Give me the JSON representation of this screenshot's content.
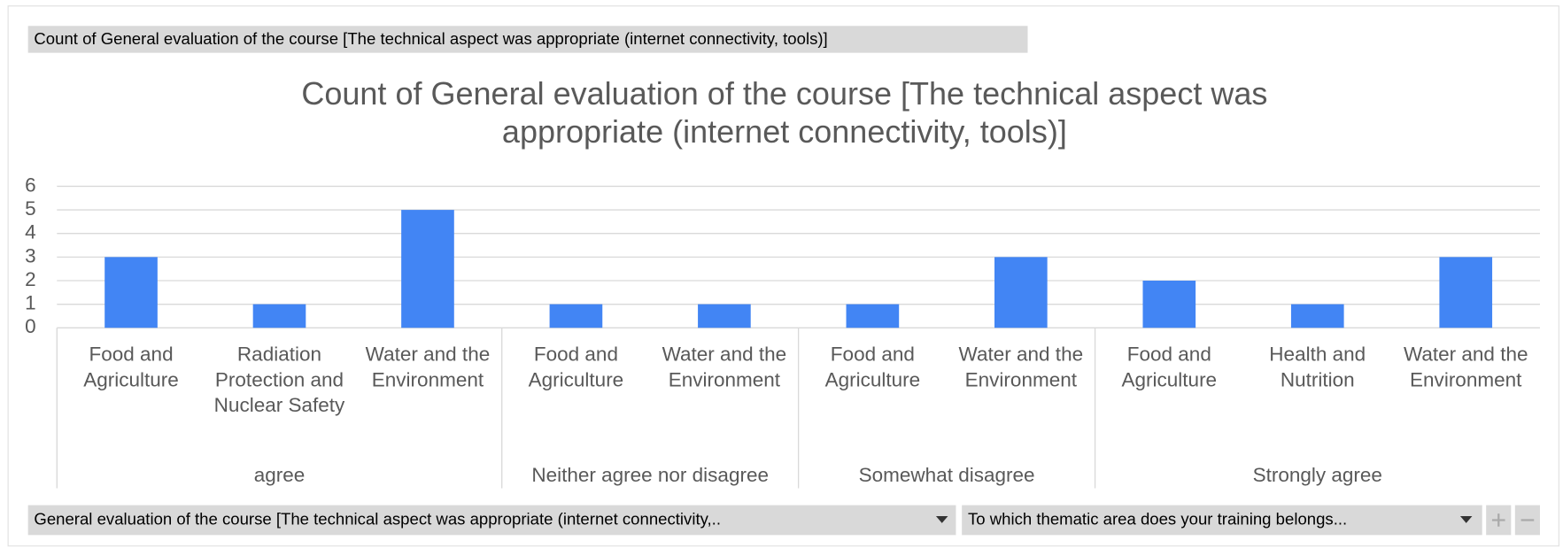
{
  "field_button": "Count of General evaluation of the course [The technical aspect was appropriate (internet connectivity, tools)]",
  "chart_data": {
    "type": "bar",
    "title": "Count of General evaluation of the course [The technical aspect was appropriate (internet connectivity, tools)]",
    "color": "#4285f4",
    "ylim": [
      0,
      6
    ],
    "yticks": [
      0,
      1,
      2,
      3,
      4,
      5,
      6
    ],
    "grid": true,
    "groups": [
      {
        "label": "agree",
        "categories": [
          "Food and Agriculture",
          "Radiation Protection and Nuclear Safety",
          "Water and the Environment"
        ],
        "values": [
          3,
          1,
          5
        ]
      },
      {
        "label": "Neither agree nor disagree",
        "categories": [
          "Food and Agriculture",
          "Water and the Environment"
        ],
        "values": [
          1,
          1
        ]
      },
      {
        "label": "Somewhat disagree",
        "categories": [
          "Food and Agriculture",
          "Water and the Environment"
        ],
        "values": [
          1,
          3
        ]
      },
      {
        "label": "Strongly agree",
        "categories": [
          "Food and Agriculture",
          "Health and Nutrition",
          "Water and the Environment"
        ],
        "values": [
          2,
          1,
          3
        ]
      }
    ]
  },
  "filters": [
    "General evaluation of the course [The  technical aspect was appropriate (internet connectivity,..",
    "To which  thematic area does your training belongs..."
  ]
}
